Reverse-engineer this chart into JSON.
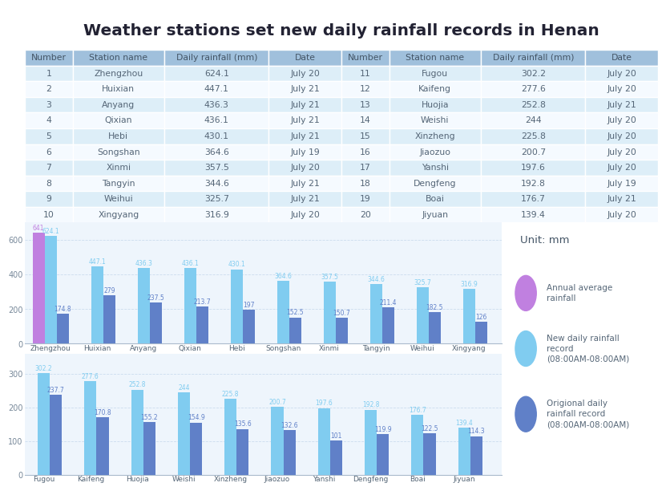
{
  "title": "Weather stations set new daily rainfall records in Henan",
  "table": {
    "col_headers": [
      "Number",
      "Station name",
      "Daily rainfall (mm)",
      "Date",
      "Number",
      "Station name",
      "Daily rainfall (mm)",
      "Date"
    ],
    "col_widths": [
      0.075,
      0.145,
      0.165,
      0.115,
      0.075,
      0.145,
      0.165,
      0.115
    ],
    "rows": [
      [
        1,
        "Zhengzhou",
        "624.1",
        "July 20",
        11,
        "Fugou",
        "302.2",
        "July 20"
      ],
      [
        2,
        "Huixian",
        "447.1",
        "July 21",
        12,
        "Kaifeng",
        "277.6",
        "July 20"
      ],
      [
        3,
        "Anyang",
        "436.3",
        "July 21",
        13,
        "Huojia",
        "252.8",
        "July 21"
      ],
      [
        4,
        "Qixian",
        "436.1",
        "July 21",
        14,
        "Weishi",
        "244",
        "July 20"
      ],
      [
        5,
        "Hebi",
        "430.1",
        "July 21",
        15,
        "Xinzheng",
        "225.8",
        "July 20"
      ],
      [
        6,
        "Songshan",
        "364.6",
        "July 19",
        16,
        "Jiaozuo",
        "200.7",
        "July 20"
      ],
      [
        7,
        "Xinmi",
        "357.5",
        "July 20",
        17,
        "Yanshi",
        "197.6",
        "July 20"
      ],
      [
        8,
        "Tangyin",
        "344.6",
        "July 21",
        18,
        "Dengfeng",
        "192.8",
        "July 19"
      ],
      [
        9,
        "Weihui",
        "325.7",
        "July 21",
        19,
        "Boai",
        "176.7",
        "July 21"
      ],
      [
        10,
        "Xingyang",
        "316.9",
        "July 20",
        20,
        "Jiyuan",
        "139.4",
        "July 20"
      ]
    ]
  },
  "chart1": {
    "stations": [
      "Zhengzhou",
      "Huixian",
      "Anyang",
      "Qixian",
      "Hebi",
      "Songshan",
      "Xinmi",
      "Tangyin",
      "Weihui",
      "Xingyang"
    ],
    "annual_avg": [
      641,
      null,
      null,
      null,
      null,
      null,
      null,
      null,
      null,
      null
    ],
    "new_record": [
      624.1,
      447.1,
      436.3,
      436.1,
      430.1,
      364.6,
      357.5,
      344.6,
      325.7,
      316.9
    ],
    "old_record": [
      174.8,
      279,
      237.5,
      213.7,
      197,
      152.5,
      150.7,
      211.4,
      182.5,
      126
    ],
    "ylim": [
      0,
      700
    ],
    "yticks": [
      0,
      200,
      400,
      600
    ]
  },
  "chart2": {
    "stations": [
      "Fugou",
      "Kaifeng",
      "Huojia",
      "Weishi",
      "Xinzheng",
      "Jiaozuo",
      "Yanshi",
      "Dengfeng",
      "Boai",
      "Jiyuan"
    ],
    "new_record": [
      302.2,
      277.6,
      252.8,
      244,
      225.8,
      200.7,
      197.6,
      192.8,
      176.7,
      139.4
    ],
    "old_record": [
      237.7,
      170.8,
      155.2,
      154.9,
      135.6,
      132.6,
      101,
      119.9,
      122.5,
      114.3
    ],
    "ylim": [
      0,
      360
    ],
    "yticks": [
      0,
      100,
      200,
      300
    ]
  },
  "colors": {
    "annual_avg": "#c080e0",
    "new_record": "#80ccf0",
    "old_record": "#6080c8",
    "header_bg": "#a0c0dc",
    "row_light": "#ddeef8",
    "row_white": "#f5faff",
    "text_header": "#445566",
    "text_row": "#556677",
    "chart_bg": "#eef5fc",
    "grid_color": "#ccddee",
    "title_color": "#222233"
  },
  "legend": {
    "unit": "Unit: mm",
    "items": [
      {
        "color": "#c080e0",
        "label": "Annual average\nrainfall"
      },
      {
        "color": "#80ccf0",
        "label": "New daily rainfall\nrecord\n(08:00AM-08:00AM)"
      },
      {
        "color": "#6080c8",
        "label": "Origional daily\nrainfall record\n(08:00AM-08:00AM)"
      }
    ]
  }
}
